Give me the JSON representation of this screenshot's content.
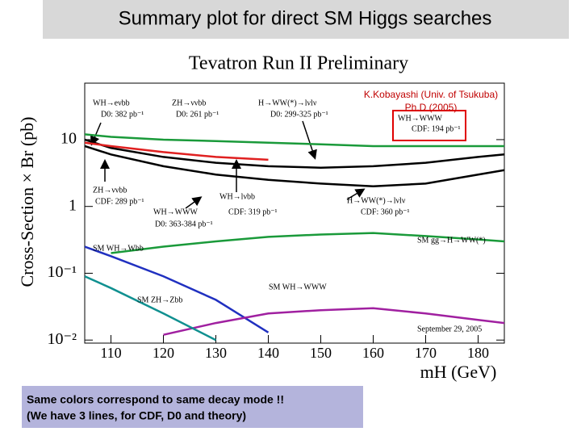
{
  "chart_data": {
    "type": "line",
    "title": "Summary plot for direct SM Higgs searches",
    "subtitle": "Tevatron Run II Preliminary",
    "x_label": "mH (GeV)",
    "y_label": "Cross-Section × Br (pb)",
    "note": [
      "Same colors correspond to same decay mode !!",
      "(We have 3 lines, for CDF, D0 and theory)"
    ],
    "annotations": [
      "WH→eνbb",
      "D0: 382 pb⁻¹",
      "ZH→ννbb",
      "D0: 261 pb⁻¹",
      "H→WW(*)→lνlν",
      "D0: 299-325 pb⁻¹",
      "K.Kobayashi (Univ. of Tsukuba)",
      "Ph.D (2005)",
      "WH→WWW",
      "CDF: 194 pb⁻¹",
      "ZH→ννbb",
      "CDF: 289 pb⁻¹",
      "WH→lνbb",
      "CDF: 319 pb⁻¹",
      "WH→WWW",
      "D0: 363-384 pb⁻¹",
      "H→WW(*)→lνlν",
      "CDF: 360 pb⁻¹",
      "SM gg→H→WW(*)",
      "SM WH→Wbb",
      "SM WH→WWW",
      "SM ZH→Zbb",
      "September 29, 2005"
    ],
    "x": [
      105,
      110,
      120,
      130,
      140,
      150,
      160,
      170,
      180,
      185
    ],
    "series": [
      {
        "color": "#000000",
        "values": [
          10,
          7.5,
          5.5,
          4.5,
          4,
          3.8,
          4,
          4.5,
          5.5,
          6
        ]
      },
      {
        "color": "#000000",
        "values": [
          8,
          6,
          4,
          3,
          2.5,
          2.2,
          2,
          2.2,
          3,
          3.5
        ]
      },
      {
        "color": "#1a9a3a",
        "values": [
          12,
          11,
          10,
          9.5,
          9,
          8.5,
          8,
          8,
          8,
          8
        ]
      },
      {
        "color": "#e02020",
        "values": [
          9,
          8,
          6.5,
          5.5,
          5,
          null,
          null,
          null,
          null,
          null
        ]
      },
      {
        "color": "#1a9a3a",
        "values": [
          null,
          0.2,
          0.25,
          0.3,
          0.35,
          0.38,
          0.4,
          0.36,
          0.32,
          0.3
        ]
      },
      {
        "color": "#2030c0",
        "values": [
          0.25,
          0.18,
          0.09,
          0.04,
          0.013,
          null,
          null,
          null,
          null,
          null
        ]
      },
      {
        "color": "#a020a0",
        "values": [
          null,
          null,
          0.012,
          0.018,
          0.025,
          0.028,
          0.03,
          0.025,
          0.02,
          0.018
        ]
      },
      {
        "color": "#109090",
        "values": [
          0.09,
          0.06,
          0.025,
          0.01,
          null,
          null,
          null,
          null,
          null,
          null
        ]
      }
    ],
    "xlim": [
      105,
      185
    ],
    "xticks": [
      110,
      120,
      130,
      140,
      150,
      160,
      170,
      180
    ],
    "ylim": [
      0.009,
      70
    ],
    "yticks": [
      {
        "value": 0.01,
        "label": "10⁻²"
      },
      {
        "value": 0.1,
        "label": "10⁻¹"
      },
      1,
      10
    ],
    "log_y": true
  }
}
